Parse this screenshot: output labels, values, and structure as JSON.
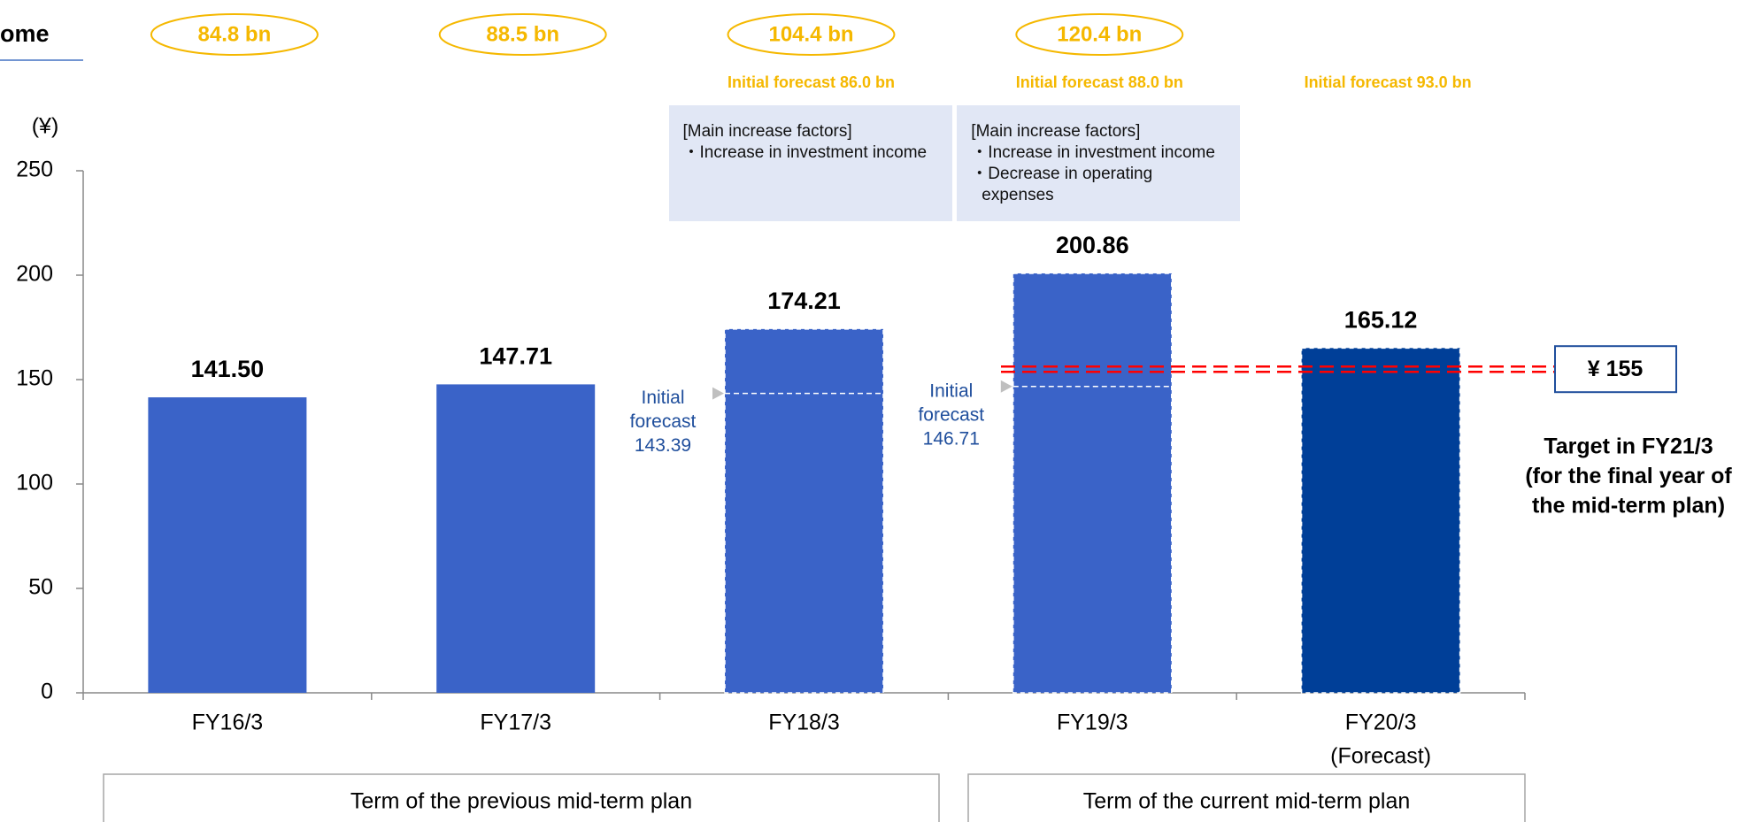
{
  "chart_data": {
    "type": "bar",
    "title": "ome",
    "y_axis_label": "(¥)",
    "categories": [
      "FY16/3",
      "FY17/3",
      "FY18/3",
      "FY19/3",
      "FY20/3"
    ],
    "category_sublabels": [
      null,
      null,
      null,
      null,
      "(Forecast)"
    ],
    "values": [
      141.5,
      147.71,
      174.21,
      200.86,
      165.12
    ],
    "value_labels": [
      "141.50",
      "147.71",
      "174.21",
      "200.86",
      "165.12"
    ],
    "colors": [
      "#3a63c8",
      "#3a63c8",
      "#3a63c8",
      "#3a63c8",
      "#003f98"
    ],
    "ylim": [
      0,
      250
    ],
    "yticks": [
      0,
      50,
      100,
      150,
      200,
      250
    ],
    "net_income_labels": [
      "84.8 bn",
      "88.5 bn",
      "104.4 bn",
      "120.4 bn",
      null
    ],
    "initial_forecast_notes": [
      null,
      null,
      "Initial forecast 86.0 bn",
      "Initial forecast 88.0 bn",
      "Initial forecast 93.0 bn"
    ],
    "factor_boxes": [
      null,
      null,
      {
        "heading": "[Main increase factors]",
        "items": [
          "・Increase in investment income"
        ]
      },
      {
        "heading": "[Main increase factors]",
        "items": [
          "・Increase in investment income",
          "・Decrease in operating expenses"
        ]
      },
      null
    ],
    "initial_forecast_label": [
      "Initial",
      "forecast"
    ],
    "initial_forecast_values": [
      null,
      null,
      143.39,
      146.71,
      null
    ],
    "target": {
      "value": 155,
      "label": "¥ 155",
      "color": "#ff0000",
      "note_lines": [
        "Target in FY21/3",
        "(for the final year of",
        "the mid-term plan)"
      ]
    },
    "terms": [
      "Term of the previous mid-term plan",
      "Term of the current mid-term plan"
    ]
  }
}
